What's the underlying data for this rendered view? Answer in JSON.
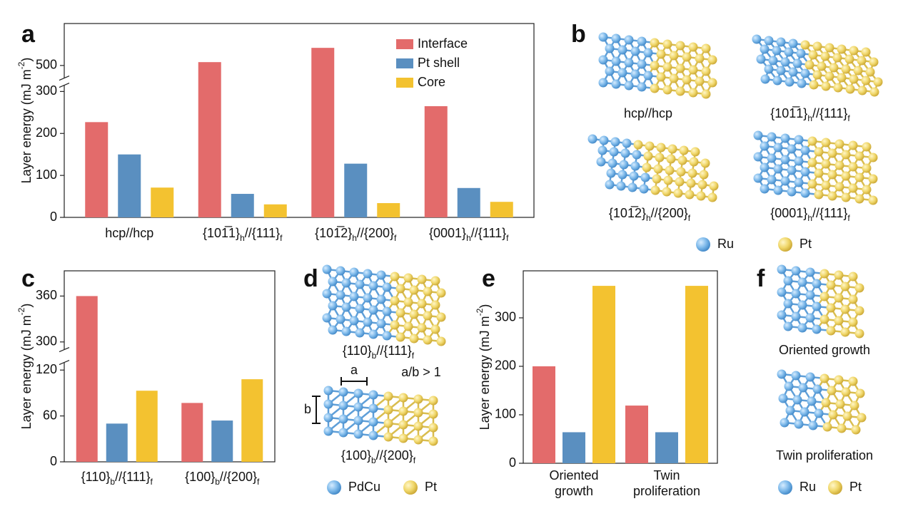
{
  "chart_data": [
    {
      "type": "bar",
      "panel": "a",
      "ylabel": [
        "Layer energy (mJ m",
        "-2",
        ")"
      ],
      "categories": [
        "hcp//hcp",
        [
          "{101̅1}",
          "h",
          "//{111}",
          "f"
        ],
        [
          "{101̅2}",
          "h",
          "//{200}",
          "f"
        ],
        [
          "{0001}",
          "h",
          "//{111}",
          "f"
        ]
      ],
      "series": [
        {
          "name": "Interface",
          "color": "#e36b6b",
          "values": [
            227,
            508,
            542,
            265
          ]
        },
        {
          "name": "Pt shell",
          "color": "#5a8fc0",
          "values": [
            150,
            56,
            128,
            70
          ]
        },
        {
          "name": "Core",
          "color": "#f3c230",
          "values": [
            71,
            31,
            34,
            37
          ]
        }
      ],
      "ylim": [
        0,
        600
      ],
      "yticks": [
        0,
        100,
        200,
        300,
        500
      ],
      "ybreak": [
        315,
        470
      ],
      "legend": "upper right"
    },
    {
      "type": "bar",
      "panel": "c",
      "ylabel": [
        "Layer energy (mJ m",
        "-2",
        ")"
      ],
      "categories": [
        [
          "{110}",
          "b",
          "//{111}",
          "f"
        ],
        [
          "{100}",
          "b",
          "//{200}",
          "f"
        ]
      ],
      "series": [
        {
          "color": "#e36b6b",
          "values": [
            360,
            77
          ]
        },
        {
          "color": "#5a8fc0",
          "values": [
            50,
            54
          ]
        },
        {
          "color": "#f3c230",
          "values": [
            93,
            108
          ]
        }
      ],
      "ylim": [
        0,
        393
      ],
      "yticks": [
        0,
        60,
        120,
        300,
        360
      ],
      "ybreak": [
        130,
        290
      ]
    },
    {
      "type": "bar",
      "panel": "e",
      "ylabel": [
        "Layer energy (mJ m",
        "-2",
        ")"
      ],
      "categories": [
        "Oriented growth",
        "Twin proliferation"
      ],
      "series": [
        {
          "color": "#e36b6b",
          "values": [
            200,
            119
          ]
        },
        {
          "color": "#5a8fc0",
          "values": [
            64,
            64
          ]
        },
        {
          "color": "#f3c230",
          "values": [
            366,
            366
          ]
        }
      ],
      "ylim": [
        0,
        397
      ],
      "yticks": [
        0,
        100,
        200,
        300
      ]
    }
  ],
  "structures": [
    {
      "panel": "b",
      "captions": [
        "hcp//hcp",
        [
          "{101̅1}",
          "h",
          "//{111}",
          "f"
        ],
        [
          "{101̅2}",
          "h",
          "//{200}",
          "f"
        ],
        [
          "{0001}",
          "h",
          "//{111}",
          "f"
        ]
      ],
      "legend": [
        "Ru",
        "Pt"
      ]
    },
    {
      "panel": "d",
      "captions": [
        [
          "{110}",
          "b",
          "//{111}",
          "f"
        ],
        [
          "{100}",
          "b",
          "//{200}",
          "f"
        ]
      ],
      "annotations": [
        "a",
        "b",
        "a/b > 1"
      ],
      "legend": [
        "PdCu",
        "Pt"
      ]
    },
    {
      "panel": "f",
      "captions": [
        "Oriented growth",
        "Twin proliferation"
      ],
      "legend": [
        "Ru",
        "Pt"
      ]
    }
  ]
}
